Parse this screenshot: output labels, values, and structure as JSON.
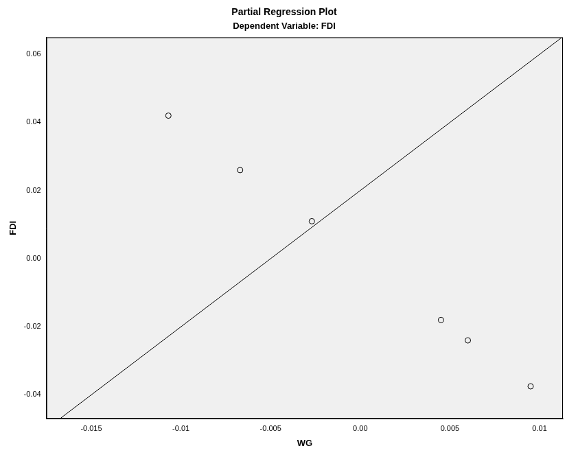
{
  "chart_data": {
    "type": "scatter",
    "title": "Partial Regression Plot",
    "subtitle": "Dependent Variable: FDI",
    "x_label": "WG",
    "y_label": "FDI",
    "series": [
      {
        "type": "scatter",
        "marker": "circle",
        "color": "#000000",
        "x": [
          -0.0107,
          -0.0067,
          -0.0027,
          0.0045,
          0.006,
          0.0095
        ],
        "values": [
          0.042,
          0.026,
          0.011,
          -0.018,
          -0.024,
          -0.0375
        ]
      },
      {
        "type": "line",
        "line_style": "solid",
        "color": "#000000",
        "x": [
          -0.0167,
          0.0112
        ],
        "values": [
          -0.0468,
          0.0648
        ]
      }
    ],
    "xlim": [
      -0.0175,
      0.0113
    ],
    "ylim": [
      -0.047,
      0.065
    ],
    "xticks": [
      -0.015,
      -0.01,
      -0.005,
      {
        "value": 0,
        "label": "0.00"
      },
      0.005,
      0.01
    ],
    "yticks": [
      -0.04,
      -0.02,
      {
        "value": 0,
        "label": "0.00"
      },
      0.02,
      0.04,
      0.06
    ],
    "grid": false
  }
}
